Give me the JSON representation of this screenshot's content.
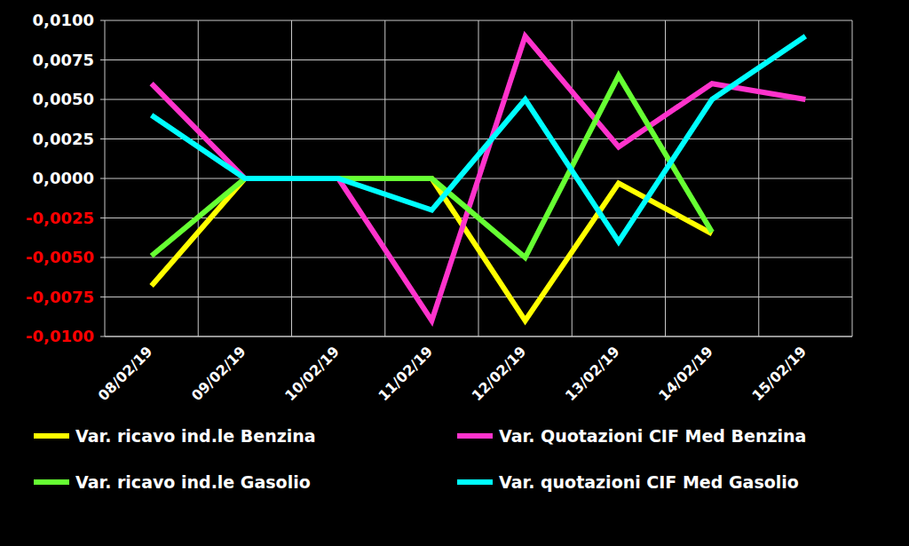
{
  "chart_data": {
    "type": "line",
    "categories": [
      "08/02/19",
      "09/02/19",
      "10/02/19",
      "11/02/19",
      "12/02/19",
      "13/02/19",
      "14/02/19",
      "15/02/19"
    ],
    "series": [
      {
        "name": "Var. ricavo ind.le Benzina",
        "color": "#ffff00",
        "values": [
          -0.0068,
          0,
          0,
          0,
          -0.009,
          -0.0003,
          -0.0035,
          null
        ]
      },
      {
        "name": "Var. Quotazioni CIF Med Benzina",
        "color": "#ff33cc",
        "values": [
          0.006,
          0,
          0,
          -0.009,
          0.009,
          0.002,
          0.006,
          0.005
        ]
      },
      {
        "name": "Var. ricavo ind.le Gasolio",
        "color": "#66ff33",
        "values": [
          -0.0049,
          0,
          0,
          0,
          -0.005,
          0.0065,
          -0.0034,
          null
        ]
      },
      {
        "name": "Var. quotazioni CIF Med Gasolio",
        "color": "#00ffff",
        "values": [
          0.004,
          0,
          0,
          -0.002,
          0.005,
          -0.004,
          0.005,
          0.009
        ]
      }
    ],
    "ylim": [
      -0.01,
      0.01
    ],
    "yticks": [
      {
        "value": -0.01,
        "label": "-0,0100"
      },
      {
        "value": -0.0075,
        "label": "-0,0075"
      },
      {
        "value": -0.005,
        "label": "-0,0050"
      },
      {
        "value": -0.0025,
        "label": "-0,0025"
      },
      {
        "value": 0,
        "label": "0,0000"
      },
      {
        "value": 0.0025,
        "label": "0,0025"
      },
      {
        "value": 0.005,
        "label": "0,0050"
      },
      {
        "value": 0.0075,
        "label": "0,0075"
      },
      {
        "value": 0.01,
        "label": "0,0100"
      }
    ],
    "grid": true,
    "legend": "bottom"
  }
}
